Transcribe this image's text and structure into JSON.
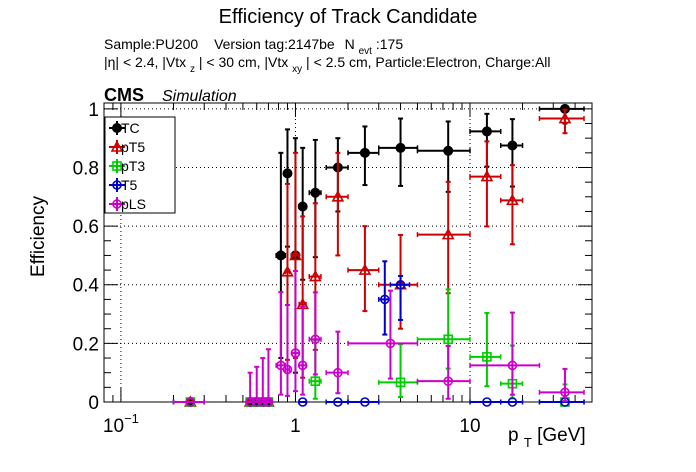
{
  "chart_data": {
    "type": "scatter",
    "title": "Efficiency of Track Candidate",
    "subtitle_line1": {
      "sample": "Sample:PU200",
      "version": "Version tag:2147be",
      "nevt_base": "N",
      "nevt_sub": "evt",
      "nevt_value": ":175"
    },
    "subtitle_line2": {
      "eta": "|η| < 2.4, |Vtx",
      "z_sub": "z",
      "z_rest": "| < 30 cm, |Vtx",
      "xy_sub": "xy",
      "rest": "| < 2.5 cm, Particle:Electron, Charge:All"
    },
    "cms_label": "CMS",
    "sim_label": "Simulation",
    "ylabel": "Efficiency",
    "xlabel_base": "p",
    "xlabel_sub": "T",
    "xlabel_unit": " [GeV]",
    "xscale": "log",
    "xlim": [
      0.08,
      50
    ],
    "ylim": [
      0,
      1.02
    ],
    "grid": true,
    "legend_position": "top-left",
    "x_tick_labels": [
      {
        "value": 0.1,
        "base": "10",
        "exp": "−1"
      },
      {
        "value": 1,
        "base": "1",
        "exp": ""
      },
      {
        "value": 10,
        "base": "10",
        "exp": ""
      }
    ],
    "y_tick_labels": [
      {
        "value": 0,
        "label": "0"
      },
      {
        "value": 0.2,
        "label": "0.2"
      },
      {
        "value": 0.4,
        "label": "0.4"
      },
      {
        "value": 0.6,
        "label": "0.6"
      },
      {
        "value": 0.8,
        "label": "0.8"
      },
      {
        "value": 1,
        "label": "1"
      }
    ],
    "series": [
      {
        "name": "TC",
        "color": "#000000",
        "marker": "circle-filled",
        "points": [
          {
            "x": 0.25,
            "xl": 0.2,
            "xh": 0.3,
            "y": 0,
            "el": 0,
            "eh": 0
          },
          {
            "x": 0.55,
            "xl": 0.525,
            "xh": 0.575,
            "y": 0,
            "el": 0,
            "eh": 0
          },
          {
            "x": 0.6,
            "xl": 0.575,
            "xh": 0.625,
            "y": 0,
            "el": 0,
            "eh": 0
          },
          {
            "x": 0.65,
            "xl": 0.625,
            "xh": 0.675,
            "y": 0,
            "el": 0,
            "eh": 0
          },
          {
            "x": 0.7,
            "xl": 0.675,
            "xh": 0.725,
            "y": 0,
            "el": 0,
            "eh": 0
          },
          {
            "x": 0.825,
            "xl": 0.775,
            "xh": 0.875,
            "y": 0.5,
            "el": 0.35,
            "eh": 0.35
          },
          {
            "x": 0.9,
            "xl": 0.875,
            "xh": 0.925,
            "y": 0.78,
            "el": 0.25,
            "eh": 0.15
          },
          {
            "x": 1.0,
            "xl": 0.95,
            "xh": 1.05,
            "y": 0.5,
            "el": 0.4,
            "eh": 0.4
          },
          {
            "x": 1.1,
            "xl": 1.05,
            "xh": 1.15,
            "y": 0.667,
            "el": 0.25,
            "eh": 0.2
          },
          {
            "x": 1.3,
            "xl": 1.2,
            "xh": 1.4,
            "y": 0.714,
            "el": 0.22,
            "eh": 0.18
          },
          {
            "x": 1.75,
            "xl": 1.5,
            "xh": 2.0,
            "y": 0.8,
            "el": 0.15,
            "eh": 0.1
          },
          {
            "x": 2.5,
            "xl": 2.0,
            "xh": 3.0,
            "y": 0.85,
            "el": 0.11,
            "eh": 0.09
          },
          {
            "x": 4.0,
            "xl": 3.0,
            "xh": 5.0,
            "y": 0.867,
            "el": 0.13,
            "eh": 0.1
          },
          {
            "x": 7.5,
            "xl": 5.0,
            "xh": 10.0,
            "y": 0.857,
            "el": 0.14,
            "eh": 0.1
          },
          {
            "x": 12.5,
            "xl": 10.0,
            "xh": 15.0,
            "y": 0.923,
            "el": 0.12,
            "eh": 0.06
          },
          {
            "x": 17.5,
            "xl": 15.0,
            "xh": 20.0,
            "y": 0.875,
            "el": 0.14,
            "eh": 0.09
          },
          {
            "x": 35.0,
            "xl": 25.0,
            "xh": 45.0,
            "y": 1.0,
            "el": 0.05,
            "eh": 0
          }
        ]
      },
      {
        "name": "pT5",
        "color": "#cc0000",
        "marker": "triangle-open",
        "points": [
          {
            "x": 0.25,
            "xl": 0.2,
            "xh": 0.3,
            "y": 0,
            "el": 0,
            "eh": 0
          },
          {
            "x": 0.55,
            "xl": 0.525,
            "xh": 0.575,
            "y": 0,
            "el": 0,
            "eh": 0
          },
          {
            "x": 0.6,
            "xl": 0.575,
            "xh": 0.625,
            "y": 0,
            "el": 0,
            "eh": 0
          },
          {
            "x": 0.65,
            "xl": 0.625,
            "xh": 0.675,
            "y": 0,
            "el": 0,
            "eh": 0
          },
          {
            "x": 0.7,
            "xl": 0.675,
            "xh": 0.725,
            "y": 0,
            "el": 0,
            "eh": 0
          },
          {
            "x": 0.9,
            "xl": 0.875,
            "xh": 0.925,
            "y": 0.444,
            "el": 0.3,
            "eh": 0.3
          },
          {
            "x": 1.0,
            "xl": 0.95,
            "xh": 1.05,
            "y": 0.5,
            "el": 0.35,
            "eh": 0.35
          },
          {
            "x": 1.1,
            "xl": 1.05,
            "xh": 1.15,
            "y": 0.333,
            "el": 0.25,
            "eh": 0.3
          },
          {
            "x": 1.3,
            "xl": 1.2,
            "xh": 1.4,
            "y": 0.428,
            "el": 0.25,
            "eh": 0.25
          },
          {
            "x": 1.75,
            "xl": 1.5,
            "xh": 2.0,
            "y": 0.7,
            "el": 0.2,
            "eh": 0.15
          },
          {
            "x": 2.5,
            "xl": 2.0,
            "xh": 3.0,
            "y": 0.45,
            "el": 0.14,
            "eh": 0.15
          },
          {
            "x": 4.0,
            "xl": 3.0,
            "xh": 5.0,
            "y": 0.4,
            "el": 0.15,
            "eh": 0.17
          },
          {
            "x": 7.5,
            "xl": 5.0,
            "xh": 10.0,
            "y": 0.571,
            "el": 0.2,
            "eh": 0.18
          },
          {
            "x": 12.5,
            "xl": 10.0,
            "xh": 15.0,
            "y": 0.769,
            "el": 0.17,
            "eh": 0.12
          },
          {
            "x": 17.5,
            "xl": 15.0,
            "xh": 20.0,
            "y": 0.688,
            "el": 0.15,
            "eh": 0.12
          },
          {
            "x": 35.0,
            "xl": 25.0,
            "xh": 45.0,
            "y": 0.967,
            "el": 0.05,
            "eh": 0.03
          }
        ]
      },
      {
        "name": "pT3",
        "color": "#00cc00",
        "marker": "square-open",
        "points": [
          {
            "x": 0.25,
            "xl": 0.2,
            "xh": 0.3,
            "y": 0,
            "el": 0,
            "eh": 0
          },
          {
            "x": 0.55,
            "xl": 0.525,
            "xh": 0.575,
            "y": 0,
            "el": 0,
            "eh": 0
          },
          {
            "x": 0.6,
            "xl": 0.575,
            "xh": 0.625,
            "y": 0,
            "el": 0,
            "eh": 0
          },
          {
            "x": 0.65,
            "xl": 0.625,
            "xh": 0.675,
            "y": 0,
            "el": 0,
            "eh": 0
          },
          {
            "x": 0.7,
            "xl": 0.675,
            "xh": 0.725,
            "y": 0,
            "el": 0,
            "eh": 0
          },
          {
            "x": 1.3,
            "xl": 1.2,
            "xh": 1.4,
            "y": 0.071,
            "el": 0.06,
            "eh": 0.14
          },
          {
            "x": 4.0,
            "xl": 3.0,
            "xh": 5.0,
            "y": 0.067,
            "el": 0.05,
            "eh": 0.13
          },
          {
            "x": 7.5,
            "xl": 5.0,
            "xh": 10.0,
            "y": 0.214,
            "el": 0.1,
            "eh": 0.17
          },
          {
            "x": 12.5,
            "xl": 10.0,
            "xh": 15.0,
            "y": 0.154,
            "el": 0.1,
            "eh": 0.15
          },
          {
            "x": 17.5,
            "xl": 15.0,
            "xh": 20.0,
            "y": 0.0625,
            "el": 0.05,
            "eh": 0.13
          },
          {
            "x": 35.0,
            "xl": 25.0,
            "xh": 45.0,
            "y": 0,
            "el": 0,
            "eh": 0.06
          }
        ]
      },
      {
        "name": "T5",
        "color": "#0000cc",
        "marker": "circle-open",
        "points": [
          {
            "x": 0.25,
            "xl": 0.2,
            "xh": 0.3,
            "y": 0,
            "el": 0,
            "eh": 0
          },
          {
            "x": 0.55,
            "xl": 0.525,
            "xh": 0.575,
            "y": 0,
            "el": 0,
            "eh": 0
          },
          {
            "x": 0.6,
            "xl": 0.575,
            "xh": 0.625,
            "y": 0,
            "el": 0,
            "eh": 0
          },
          {
            "x": 0.65,
            "xl": 0.625,
            "xh": 0.675,
            "y": 0,
            "el": 0,
            "eh": 0
          },
          {
            "x": 0.7,
            "xl": 0.675,
            "xh": 0.725,
            "y": 0,
            "el": 0,
            "eh": 0
          },
          {
            "x": 1.1,
            "xl": 1.05,
            "xh": 1.15,
            "y": 0,
            "el": 0,
            "eh": 0
          },
          {
            "x": 1.75,
            "xl": 1.5,
            "xh": 2.0,
            "y": 0,
            "el": 0,
            "eh": 0
          },
          {
            "x": 2.5,
            "xl": 2.0,
            "xh": 3.0,
            "y": 0,
            "el": 0,
            "eh": 0
          },
          {
            "x": 3.25,
            "xl": 3.0,
            "xh": 3.5,
            "y": 0.35,
            "el": 0.12,
            "eh": 0.13
          },
          {
            "x": 4.0,
            "xl": 3.5,
            "xh": 4.5,
            "y": 0.4,
            "el": 0.12,
            "eh": 0.03
          },
          {
            "x": 12.5,
            "xl": 10.0,
            "xh": 15.0,
            "y": 0,
            "el": 0,
            "eh": 0
          },
          {
            "x": 17.5,
            "xl": 15.0,
            "xh": 20.0,
            "y": 0,
            "el": 0,
            "eh": 0
          },
          {
            "x": 35.0,
            "xl": 25.0,
            "xh": 45.0,
            "y": 0,
            "el": 0,
            "eh": 0
          }
        ]
      },
      {
        "name": "pLS",
        "color": "#cc00cc",
        "marker": "circle-open",
        "points": [
          {
            "x": 0.25,
            "xl": 0.2,
            "xh": 0.3,
            "y": 0,
            "el": 0,
            "eh": 0
          },
          {
            "x": 0.55,
            "xl": 0.525,
            "xh": 0.575,
            "y": 0,
            "el": 0,
            "eh": 0.1
          },
          {
            "x": 0.6,
            "xl": 0.575,
            "xh": 0.625,
            "y": 0,
            "el": 0,
            "eh": 0.12
          },
          {
            "x": 0.65,
            "xl": 0.625,
            "xh": 0.675,
            "y": 0,
            "el": 0,
            "eh": 0.15
          },
          {
            "x": 0.7,
            "xl": 0.675,
            "xh": 0.725,
            "y": 0,
            "el": 0,
            "eh": 0.18
          },
          {
            "x": 0.825,
            "xl": 0.775,
            "xh": 0.875,
            "y": 0.125,
            "el": 0.1,
            "eh": 0.25
          },
          {
            "x": 0.9,
            "xl": 0.875,
            "xh": 0.925,
            "y": 0.111,
            "el": 0.09,
            "eh": 0.22
          },
          {
            "x": 1.0,
            "xl": 0.95,
            "xh": 1.05,
            "y": 0.167,
            "el": 0.13,
            "eh": 0.28
          },
          {
            "x": 1.1,
            "xl": 1.05,
            "xh": 1.15,
            "y": 0.125,
            "el": 0.1,
            "eh": 0.2
          },
          {
            "x": 1.3,
            "xl": 1.2,
            "xh": 1.4,
            "y": 0.214,
            "el": 0.12,
            "eh": 0.16
          },
          {
            "x": 1.75,
            "xl": 1.5,
            "xh": 2.0,
            "y": 0.1,
            "el": 0.07,
            "eh": 0.14
          },
          {
            "x": 3.5,
            "xl": 2.0,
            "xh": 5.0,
            "y": 0.2,
            "el": 0.12,
            "eh": 0.18
          },
          {
            "x": 7.5,
            "xl": 5.0,
            "xh": 10.0,
            "y": 0.071,
            "el": 0.06,
            "eh": 0.12
          },
          {
            "x": 17.5,
            "xl": 10.0,
            "xh": 25.0,
            "y": 0.125,
            "el": 0.1,
            "eh": 0.18
          },
          {
            "x": 35.0,
            "xl": 25.0,
            "xh": 45.0,
            "y": 0.033,
            "el": 0.03,
            "eh": 0.08
          }
        ]
      }
    ]
  }
}
